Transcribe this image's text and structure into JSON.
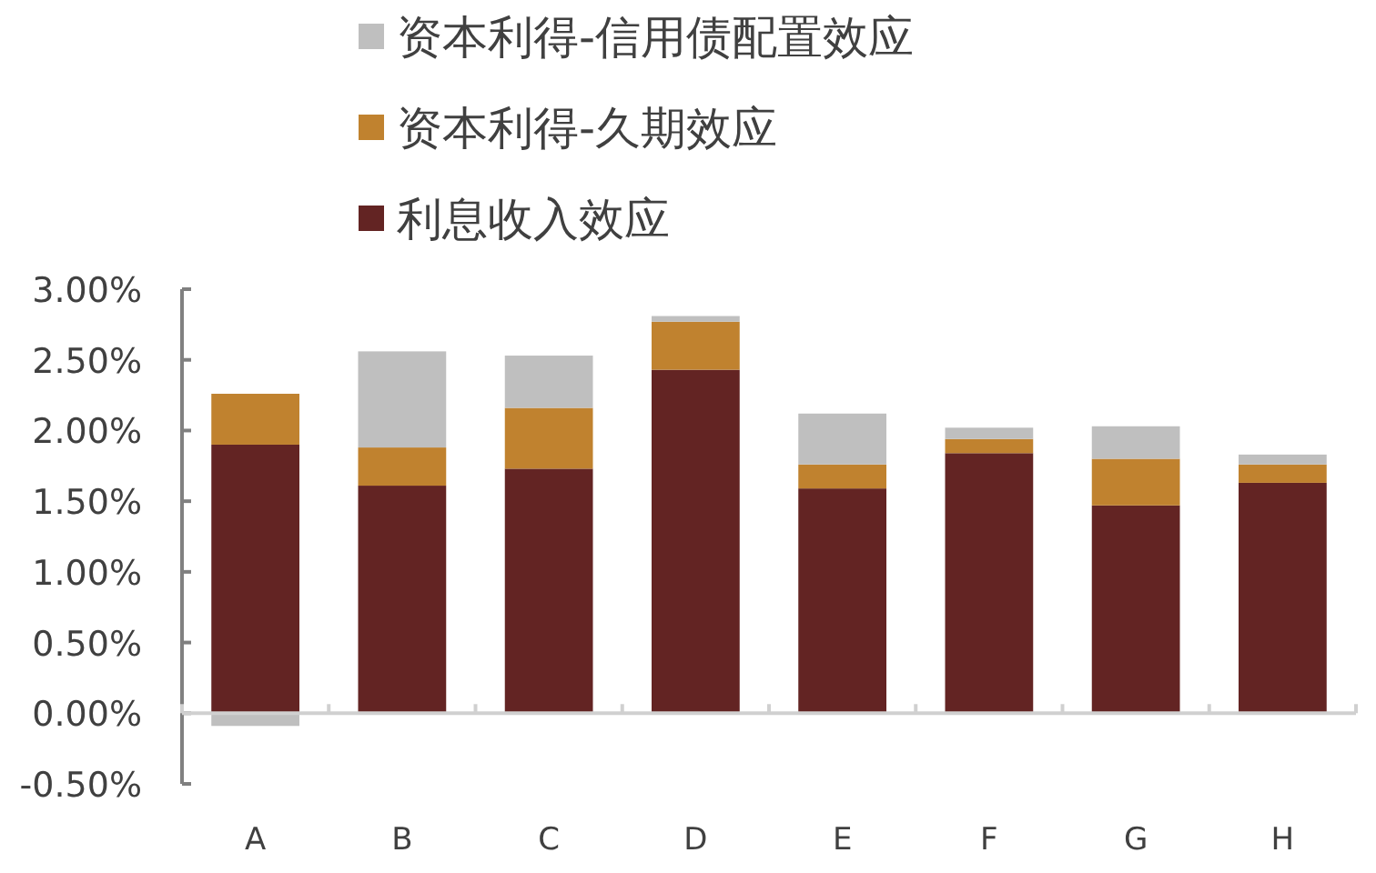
{
  "chart_data": {
    "type": "bar",
    "stacked": true,
    "legend": "top",
    "categories": [
      "A",
      "B",
      "C",
      "D",
      "E",
      "F",
      "G",
      "H"
    ],
    "series": [
      {
        "name": "利息收入效应",
        "color": "#632423",
        "values": [
          1.9,
          1.61,
          1.73,
          2.43,
          1.59,
          1.84,
          1.47,
          1.63
        ]
      },
      {
        "name": "资本利得-久期效应",
        "color": "#c0822f",
        "values": [
          0.36,
          0.27,
          0.43,
          0.34,
          0.17,
          0.1,
          0.33,
          0.13
        ]
      },
      {
        "name": "资本利得-信用债配置效应",
        "color": "#bfbfbf",
        "values": [
          -0.09,
          0.68,
          0.37,
          0.04,
          0.36,
          0.08,
          0.23,
          0.07
        ]
      }
    ],
    "ylim": [
      -0.5,
      3
    ],
    "yticks": [
      {
        "value": -0.5,
        "label": "-0.50%"
      },
      {
        "value": 0,
        "label": "0.00%"
      },
      {
        "value": 0.5,
        "label": "0.50%"
      },
      {
        "value": 1,
        "label": "1.00%"
      },
      {
        "value": 1.5,
        "label": "1.50%"
      },
      {
        "value": 2,
        "label": "2.00%"
      },
      {
        "value": 2.5,
        "label": "2.50%"
      },
      {
        "value": 3,
        "label": "3.00%"
      }
    ]
  }
}
